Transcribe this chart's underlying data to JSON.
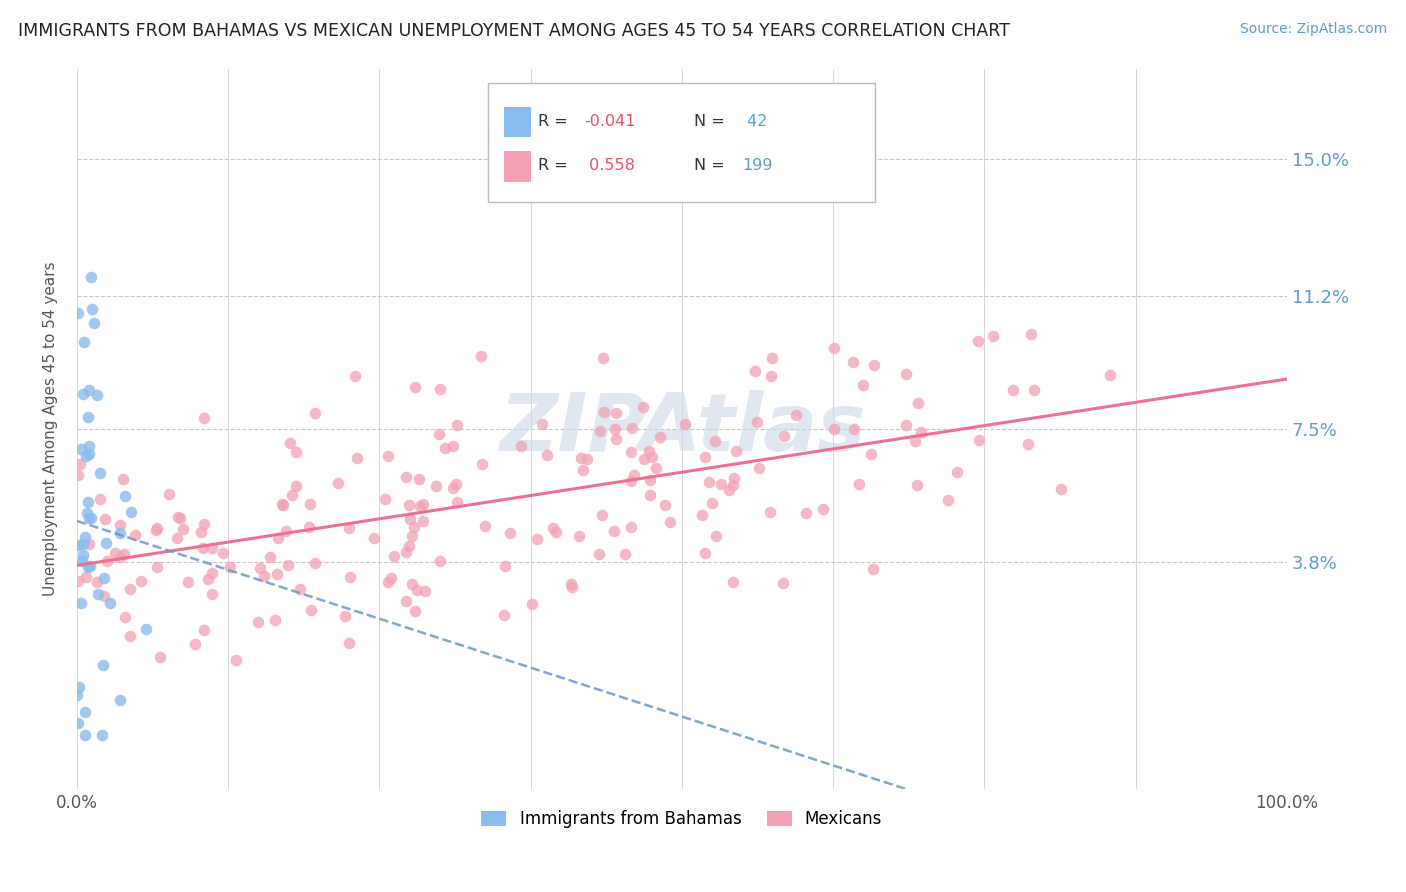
{
  "title": "IMMIGRANTS FROM BAHAMAS VS MEXICAN UNEMPLOYMENT AMONG AGES 45 TO 54 YEARS CORRELATION CHART",
  "source": "Source: ZipAtlas.com",
  "ylabel": "Unemployment Among Ages 45 to 54 years",
  "xlim": [
    0.0,
    1.0
  ],
  "ylim": [
    -0.025,
    0.175
  ],
  "y_tick_labels": [
    "3.8%",
    "7.5%",
    "11.2%",
    "15.0%"
  ],
  "y_tick_values": [
    0.038,
    0.075,
    0.112,
    0.15
  ],
  "y_tick_color": "#5b9bd5",
  "background_color": "#ffffff",
  "grid_color": "#c8c8c8",
  "watermark_color": "#ccd8e8",
  "color_bahamas": "#88bbee",
  "color_mexico": "#f4a0b5",
  "line_color_bahamas": "#6699cc",
  "line_color_mexico": "#ee7090",
  "R_bahamas": -0.041,
  "N_bahamas": 42,
  "R_mexico": 0.558,
  "N_mexico": 199,
  "legend_items": [
    {
      "r_text": "R = ",
      "r_val": "-0.041",
      "n_text": "N = ",
      "n_val": " 42",
      "color": "#88bbee"
    },
    {
      "r_text": "R =  ",
      "r_val": "0.558",
      "n_text": "N = ",
      "n_val": "199",
      "color": "#f4a0b5"
    }
  ],
  "bottom_legend": [
    "Immigrants from Bahamas",
    "Mexicans"
  ]
}
